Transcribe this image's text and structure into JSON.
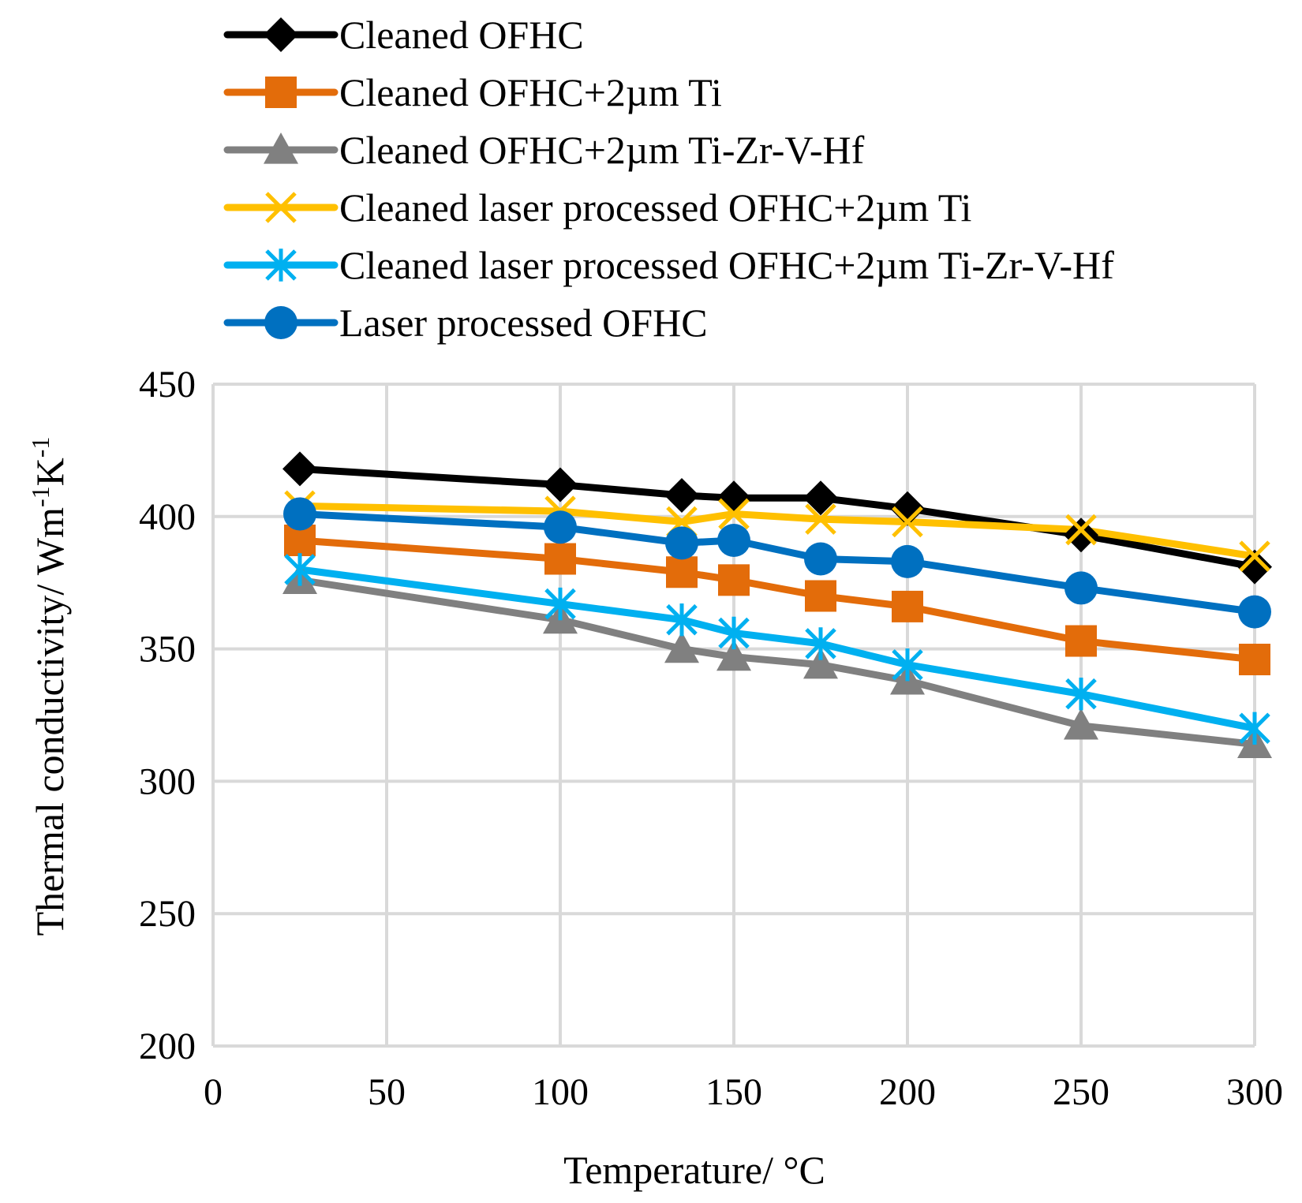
{
  "chart_data": {
    "type": "line",
    "title": "",
    "xlabel": "Temperature/ °C",
    "ylabel_parts": [
      "Thermal conductivity/  Wm",
      "-1",
      "K",
      "-1"
    ],
    "xlim": [
      0,
      300
    ],
    "ylim": [
      200,
      450
    ],
    "xticks": [
      0,
      50,
      100,
      150,
      200,
      250,
      300
    ],
    "yticks": [
      200,
      250,
      300,
      350,
      400,
      450
    ],
    "grid": true,
    "legend_position": "top",
    "x": [
      25,
      100,
      135,
      150,
      175,
      200,
      250,
      300
    ],
    "series": [
      {
        "name": "Cleaned OFHC",
        "color": "#000000",
        "marker": "diamond",
        "values": [
          418,
          412,
          408,
          407,
          407,
          403,
          393,
          381
        ]
      },
      {
        "name": "Cleaned OFHC+2µm Ti",
        "color": "#E36C0A",
        "marker": "square",
        "values": [
          391,
          384,
          379,
          376,
          370,
          366,
          353,
          346
        ]
      },
      {
        "name": "Cleaned OFHC+2µm Ti-Zr-V-Hf",
        "color": "#808080",
        "marker": "triangle",
        "values": [
          376,
          361,
          350,
          347,
          344,
          338,
          321,
          314
        ]
      },
      {
        "name": "Cleaned laser processed OFHC+2µm Ti",
        "color": "#FFC000",
        "marker": "x",
        "values": [
          404,
          402,
          398,
          401,
          399,
          398,
          395,
          385
        ]
      },
      {
        "name": "Cleaned laser processed OFHC+2µm Ti-Zr-V-Hf",
        "color": "#00B0F0",
        "marker": "asterisk",
        "values": [
          380,
          367,
          361,
          356,
          352,
          344,
          333,
          320
        ]
      },
      {
        "name": "Laser processed OFHC",
        "color": "#0070C0",
        "marker": "circle",
        "values": [
          401,
          396,
          390,
          391,
          384,
          383,
          373,
          364
        ]
      }
    ]
  }
}
